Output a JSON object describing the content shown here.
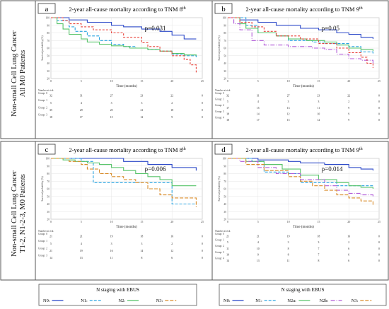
{
  "row_labels": [
    {
      "line1": "Non-small Cell Lung Cancer",
      "line2": "All M0 Patients"
    },
    {
      "line1": "Non-small Cell Lung Cancer",
      "line2": "T1-2, N1-2-3, M0 Patients"
    }
  ],
  "legends": [
    {
      "title": "N staging with EBUS",
      "items": [
        "N0:",
        "N1:",
        "N2:",
        "N3:"
      ]
    },
    {
      "title": "N staging with EBUS",
      "items": [
        "N0:",
        "N1:",
        "N2a:",
        "N2b:",
        "N3:"
      ]
    }
  ],
  "chart_data": [
    {
      "type": "line",
      "panel": "a",
      "title": "2-year all-cause mortality according to TNM 8",
      "title_sup": "th",
      "annotation": "p=0.031",
      "xlabel": "Time (months)",
      "ylabel": "Survival probability (%)",
      "xlim": [
        0,
        25
      ],
      "ylim": [
        20,
        100
      ],
      "xticks": [
        0,
        5,
        10,
        15,
        20,
        25
      ],
      "yticks": [
        20,
        30,
        40,
        50,
        60,
        70,
        80,
        90,
        100
      ],
      "series": [
        {
          "color": "#2b48c8",
          "dash": "",
          "x": [
            0,
            3,
            6,
            10,
            12,
            15,
            18,
            20,
            22,
            24
          ],
          "y": [
            100,
            97,
            94,
            90,
            88,
            85,
            82,
            77,
            72,
            72
          ]
        },
        {
          "color": "#2aa3e0",
          "dash": "4,2",
          "x": [
            0,
            1,
            3,
            4,
            6,
            8,
            10,
            12,
            14,
            16,
            18,
            20,
            22,
            24
          ],
          "y": [
            100,
            96,
            88,
            82,
            76,
            70,
            65,
            62,
            60,
            58,
            56,
            52,
            50,
            48
          ]
        },
        {
          "color": "#58c46a",
          "dash": "",
          "x": [
            0,
            1,
            2,
            3,
            5,
            6,
            8,
            10,
            12,
            13,
            16,
            18,
            20,
            22,
            24
          ],
          "y": [
            100,
            92,
            85,
            78,
            72,
            68,
            65,
            63,
            62,
            60,
            58,
            56,
            53,
            51,
            50
          ]
        },
        {
          "color": "#e8423a",
          "dash": "3,2",
          "x": [
            0,
            2,
            3,
            5,
            7,
            10,
            12,
            15,
            16,
            18,
            20,
            22,
            23,
            24
          ],
          "y": [
            100,
            96,
            92,
            88,
            84,
            80,
            74,
            67,
            62,
            56,
            50,
            45,
            38,
            28
          ]
        }
      ],
      "risk_table": {
        "header": "Number at risk",
        "rows": [
          {
            "label": "Group: 0",
            "values": [
              "32",
              "31",
              "27",
              "23",
              "22",
              "0"
            ]
          },
          {
            "label": "Group: 1",
            "values": [
              "5",
              "4",
              "3",
              "3",
              "2",
              "0"
            ]
          },
          {
            "label": "Group: 2",
            "values": [
              "35",
              "29",
              "25",
              "21",
              "18",
              "0"
            ]
          },
          {
            "label": "Group: 3",
            "values": [
              "18",
              "17",
              "15",
              "12",
              "9",
              "0"
            ]
          }
        ]
      }
    },
    {
      "type": "line",
      "panel": "b",
      "title": "2-year all-cause mortality according to TNM 9",
      "title_sup": "th",
      "annotation": "p=0.05",
      "xlabel": "Time (months)",
      "ylabel": "Survival probability (%)",
      "xlim": [
        0,
        25
      ],
      "ylim": [
        20,
        100
      ],
      "xticks": [
        0,
        5,
        10,
        15,
        20,
        25
      ],
      "yticks": [
        20,
        30,
        40,
        50,
        60,
        70,
        80,
        90,
        100
      ],
      "series": [
        {
          "color": "#2b48c8",
          "dash": "",
          "x": [
            0,
            2,
            5,
            8,
            12,
            15,
            18,
            20,
            22,
            24
          ],
          "y": [
            100,
            97,
            94,
            90,
            86,
            84,
            80,
            78,
            74,
            72
          ]
        },
        {
          "color": "#2aa3e0",
          "dash": "4,2",
          "x": [
            0,
            3,
            5,
            8,
            10,
            14,
            16,
            20,
            22,
            24
          ],
          "y": [
            100,
            90,
            80,
            76,
            70,
            68,
            66,
            62,
            55,
            52
          ]
        },
        {
          "color": "#58c46a",
          "dash": "",
          "x": [
            0,
            2,
            3,
            5,
            8,
            10,
            13,
            16,
            18,
            20,
            22,
            24
          ],
          "y": [
            100,
            92,
            86,
            80,
            76,
            72,
            70,
            68,
            64,
            60,
            58,
            56
          ]
        },
        {
          "color": "#b15ad8",
          "dash": "6,2,1,2",
          "x": [
            0,
            1,
            2,
            4,
            6,
            10,
            14,
            16,
            18,
            20,
            22,
            24
          ],
          "y": [
            100,
            92,
            84,
            70,
            64,
            62,
            60,
            58,
            52,
            46,
            44,
            40
          ]
        },
        {
          "color": "#e8423a",
          "dash": "3,2",
          "x": [
            0,
            2,
            4,
            6,
            8,
            12,
            15,
            18,
            20,
            22,
            23,
            24
          ],
          "y": [
            100,
            94,
            88,
            82,
            76,
            72,
            66,
            60,
            54,
            48,
            40,
            34
          ]
        }
      ],
      "risk_table": {
        "header": "Number at risk",
        "rows": [
          {
            "label": "Group: 0",
            "values": [
              "32",
              "31",
              "27",
              "23",
              "22",
              "0"
            ]
          },
          {
            "label": "Group: 1",
            "values": [
              "5",
              "4",
              "3",
              "3",
              "2",
              "0"
            ]
          },
          {
            "label": "Group: 2",
            "values": [
              "17",
              "15",
              "13",
              "11",
              "9",
              "0"
            ]
          },
          {
            "label": "Group: 3",
            "values": [
              "18",
              "14",
              "12",
              "10",
              "9",
              "0"
            ]
          },
          {
            "label": "Group: 4",
            "values": [
              "18",
              "17",
              "15",
              "12",
              "9",
              "0"
            ]
          }
        ]
      }
    },
    {
      "type": "line",
      "panel": "c",
      "title": "2-year all-cause mortality according to TNM 8",
      "title_sup": "th",
      "annotation": "p=0.006",
      "xlabel": "Time (months)",
      "ylabel": "Survival probability (%)",
      "xlim": [
        0,
        25
      ],
      "ylim": [
        20,
        100
      ],
      "xticks": [
        0,
        5,
        10,
        15,
        20,
        25
      ],
      "yticks": [
        20,
        30,
        40,
        50,
        60,
        70,
        80,
        90,
        100
      ],
      "series": [
        {
          "color": "#2b48c8",
          "dash": "",
          "x": [
            0,
            8,
            12,
            14,
            16,
            18,
            20,
            22,
            24
          ],
          "y": [
            100,
            100,
            96,
            96,
            92,
            92,
            88,
            88,
            84
          ]
        },
        {
          "color": "#2aa3e0",
          "dash": "4,2",
          "x": [
            0,
            5,
            7,
            10,
            12,
            15,
            18,
            20,
            24
          ],
          "y": [
            100,
            96,
            68,
            68,
            68,
            68,
            68,
            40,
            40
          ]
        },
        {
          "color": "#58c46a",
          "dash": "",
          "x": [
            0,
            2,
            4,
            6,
            8,
            10,
            12,
            14,
            16,
            18,
            20,
            24
          ],
          "y": [
            100,
            98,
            96,
            94,
            92,
            88,
            84,
            80,
            76,
            72,
            64,
            64
          ]
        },
        {
          "color": "#d98c2a",
          "dash": "5,2",
          "x": [
            0,
            3,
            5,
            6,
            8,
            10,
            12,
            14,
            16,
            18,
            20,
            22,
            24
          ],
          "y": [
            100,
            96,
            92,
            86,
            80,
            76,
            72,
            68,
            60,
            52,
            48,
            48,
            36
          ]
        }
      ],
      "risk_table": {
        "header": "Number at risk",
        "rows": [
          {
            "label": "Group: 0",
            "values": [
              "21",
              "21",
              "19",
              "18",
              "16",
              "0"
            ]
          },
          {
            "label": "Group: 1",
            "values": [
              "5",
              "4",
              "3",
              "3",
              "2",
              "0"
            ]
          },
          {
            "label": "Group: 2",
            "values": [
              "21",
              "19",
              "16",
              "14",
              "12",
              "0"
            ]
          },
          {
            "label": "Group: 3",
            "values": [
              "14",
              "13",
              "11",
              "8",
              "6",
              "0"
            ]
          }
        ]
      }
    },
    {
      "type": "line",
      "panel": "d",
      "title": "2-year all-cause mortality according to TNM 9",
      "title_sup": "th",
      "annotation": "p=0.014",
      "xlabel": "Time (months)",
      "ylabel": "Survival probability (%)",
      "xlim": [
        0,
        25
      ],
      "ylim": [
        20,
        100
      ],
      "xticks": [
        0,
        5,
        10,
        15,
        20,
        25
      ],
      "yticks": [
        20,
        30,
        40,
        50,
        60,
        70,
        80,
        90,
        100
      ],
      "series": [
        {
          "color": "#2b48c8",
          "dash": "",
          "x": [
            0,
            5,
            10,
            12,
            16,
            20,
            22,
            24
          ],
          "y": [
            100,
            98,
            96,
            94,
            92,
            88,
            86,
            84
          ]
        },
        {
          "color": "#2aa3e0",
          "dash": "4,2",
          "x": [
            0,
            4,
            6,
            10,
            12,
            15,
            18,
            20,
            24
          ],
          "y": [
            100,
            96,
            82,
            80,
            68,
            68,
            64,
            64,
            64
          ]
        },
        {
          "color": "#58c46a",
          "dash": "",
          "x": [
            0,
            3,
            6,
            9,
            12,
            15,
            18,
            20,
            22,
            24
          ],
          "y": [
            100,
            96,
            92,
            86,
            78,
            72,
            68,
            64,
            62,
            60
          ]
        },
        {
          "color": "#b15ad8",
          "dash": "6,2,1,2",
          "x": [
            0,
            2,
            5,
            8,
            12,
            16,
            18,
            20,
            22,
            24
          ],
          "y": [
            100,
            96,
            88,
            80,
            72,
            64,
            58,
            54,
            52,
            50
          ]
        },
        {
          "color": "#d98c2a",
          "dash": "5,2",
          "x": [
            0,
            3,
            6,
            10,
            12,
            14,
            16,
            18,
            20,
            22,
            24
          ],
          "y": [
            100,
            92,
            84,
            76,
            70,
            64,
            58,
            52,
            48,
            44,
            38
          ]
        }
      ],
      "risk_table": {
        "header": "Number at risk",
        "rows": [
          {
            "label": "Group: 0",
            "values": [
              "21",
              "21",
              "19",
              "18",
              "16",
              "0"
            ]
          },
          {
            "label": "Group: 1",
            "values": [
              "5",
              "4",
              "3",
              "3",
              "2",
              "0"
            ]
          },
          {
            "label": "Group: 2",
            "values": [
              "11",
              "10",
              "8",
              "7",
              "6",
              "0"
            ]
          },
          {
            "label": "Group: 3",
            "values": [
              "10",
              "9",
              "8",
              "7",
              "6",
              "0"
            ]
          },
          {
            "label": "Group: 4",
            "values": [
              "14",
              "13",
              "11",
              "8",
              "6",
              "0"
            ]
          }
        ]
      }
    }
  ]
}
